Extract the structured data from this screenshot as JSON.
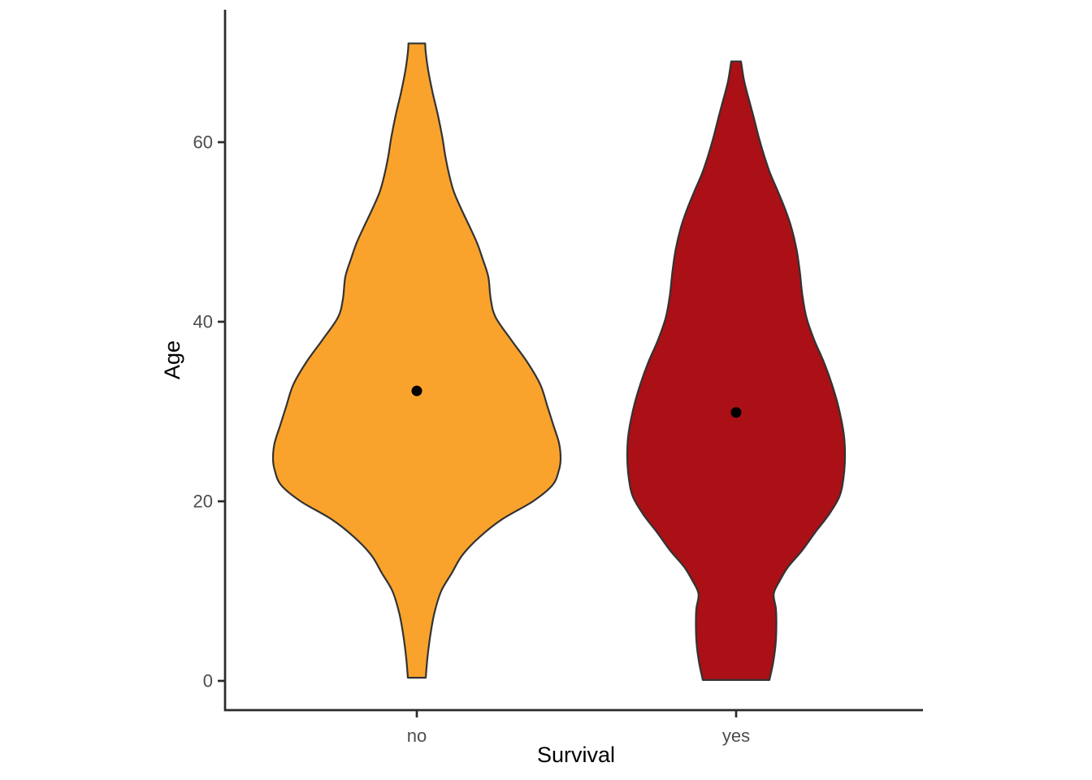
{
  "chart_data": {
    "type": "violin",
    "title": "",
    "xlabel": "Survival",
    "ylabel": "Age",
    "categories": [
      "no",
      "yes"
    ],
    "y_ticks": [
      0,
      20,
      40,
      60
    ],
    "ylim": [
      0,
      75
    ],
    "grid": false,
    "legend": false,
    "mean_dot_color": "#000000",
    "outline_color": "#333333",
    "tick_label_color": "#4d4d4d",
    "axis_title_color": "#000000",
    "profile_units": "age_vs_halfwidth_px",
    "series": [
      {
        "name": "no",
        "fill": "#FAA32C",
        "mean_age": 32.3,
        "age_min": 0.35,
        "age_max": 71,
        "profile": [
          [
            0.35,
            11
          ],
          [
            2.5,
            13
          ],
          [
            5,
            16.5
          ],
          [
            7.5,
            21.5
          ],
          [
            10,
            30
          ],
          [
            12,
            43
          ],
          [
            14,
            56
          ],
          [
            16,
            77
          ],
          [
            18,
            105
          ],
          [
            20,
            143
          ],
          [
            21.8,
            167
          ],
          [
            23.5,
            175
          ],
          [
            24.8,
            177
          ],
          [
            26.5,
            175
          ],
          [
            28.5,
            168
          ],
          [
            30.5,
            161
          ],
          [
            33,
            152
          ],
          [
            35.5,
            136
          ],
          [
            38,
            116
          ],
          [
            40.5,
            97
          ],
          [
            42.5,
            91
          ],
          [
            45,
            88
          ],
          [
            47,
            81
          ],
          [
            48.7,
            74.5
          ],
          [
            50.5,
            65.5
          ],
          [
            52.5,
            55
          ],
          [
            54.5,
            45.5
          ],
          [
            56.5,
            39.5
          ],
          [
            58.5,
            35
          ],
          [
            60.5,
            31.5
          ],
          [
            63,
            26
          ],
          [
            65.5,
            19.5
          ],
          [
            68,
            14
          ],
          [
            70,
            11
          ],
          [
            71,
            10.3
          ]
        ]
      },
      {
        "name": "yes",
        "fill": "#AA1016",
        "mean_age": 29.9,
        "age_min": 0.1,
        "age_max": 69,
        "profile": [
          [
            0.1,
            41
          ],
          [
            2,
            45.5
          ],
          [
            4,
            48.5
          ],
          [
            6,
            49.5
          ],
          [
            8,
            49
          ],
          [
            9.7,
            46.3
          ],
          [
            11.2,
            54
          ],
          [
            12.7,
            64
          ],
          [
            14.5,
            81
          ],
          [
            16.5,
            97
          ],
          [
            18.5,
            114
          ],
          [
            20.5,
            127
          ],
          [
            22.5,
            132
          ],
          [
            25,
            134
          ],
          [
            27.5,
            132.5
          ],
          [
            30.5,
            126
          ],
          [
            33,
            118
          ],
          [
            35.5,
            108
          ],
          [
            38,
            96
          ],
          [
            40.5,
            86.5
          ],
          [
            43,
            81.5
          ],
          [
            45.5,
            78.5
          ],
          [
            48,
            74.5
          ],
          [
            50.5,
            68
          ],
          [
            52.5,
            60.5
          ],
          [
            54.5,
            51.5
          ],
          [
            56.5,
            42
          ],
          [
            58.5,
            34.5
          ],
          [
            60.5,
            28
          ],
          [
            63,
            21
          ],
          [
            65.5,
            13.5
          ],
          [
            67,
            9.5
          ],
          [
            69,
            6
          ]
        ]
      }
    ]
  }
}
